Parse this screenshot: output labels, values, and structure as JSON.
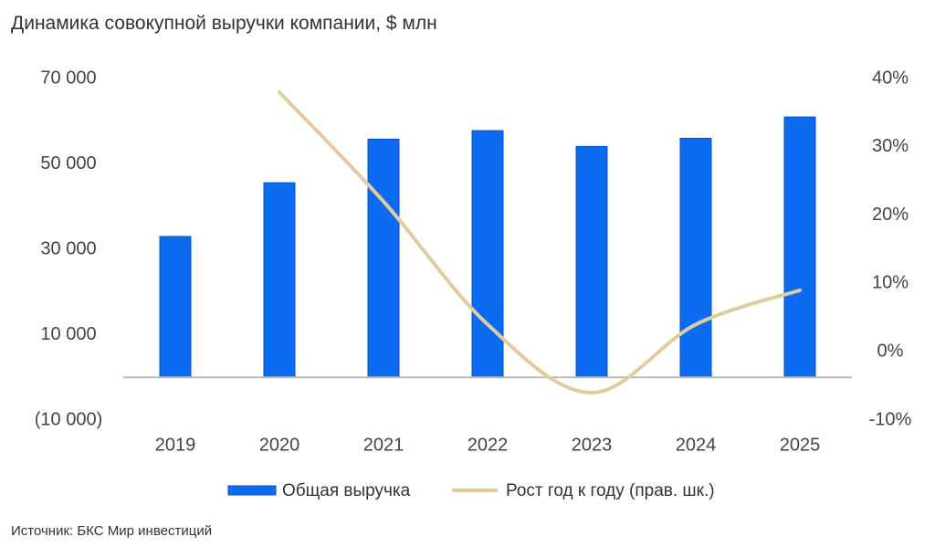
{
  "chart_data": {
    "type": "bar-line",
    "title": "Динамика совокупной выручки компании, $ млн",
    "source": "Источник: БКС Мир инвестиций",
    "categories": [
      "2019",
      "2020",
      "2021",
      "2022",
      "2023",
      "2024",
      "2025"
    ],
    "series": [
      {
        "name": "Общая выручка",
        "type": "bar",
        "color": "#0b6cf2",
        "values": [
          33000,
          45600,
          55800,
          57800,
          54100,
          56000,
          61000
        ]
      },
      {
        "name": "Рост год к году (прав. шк.)",
        "type": "line",
        "axis": "y2",
        "color": "#e0cc9c",
        "values": [
          null,
          38,
          22,
          4,
          -6,
          4,
          9
        ]
      }
    ],
    "ylim": [
      -10000,
      70000
    ],
    "yticks": [
      {
        "value": 70000,
        "label": "70 000"
      },
      {
        "value": 50000,
        "label": "50 000"
      },
      {
        "value": 30000,
        "label": "30 000"
      },
      {
        "value": 10000,
        "label": "10 000"
      },
      {
        "value": -10000,
        "label": "(10 000)"
      }
    ],
    "y2lim": [
      -10,
      40
    ],
    "y2ticks": [
      {
        "value": 40,
        "label": "40%"
      },
      {
        "value": 30,
        "label": "30%"
      },
      {
        "value": 20,
        "label": "20%"
      },
      {
        "value": 10,
        "label": "10%"
      },
      {
        "value": 0,
        "label": "0%"
      },
      {
        "value": -10,
        "label": "-10%"
      }
    ]
  }
}
